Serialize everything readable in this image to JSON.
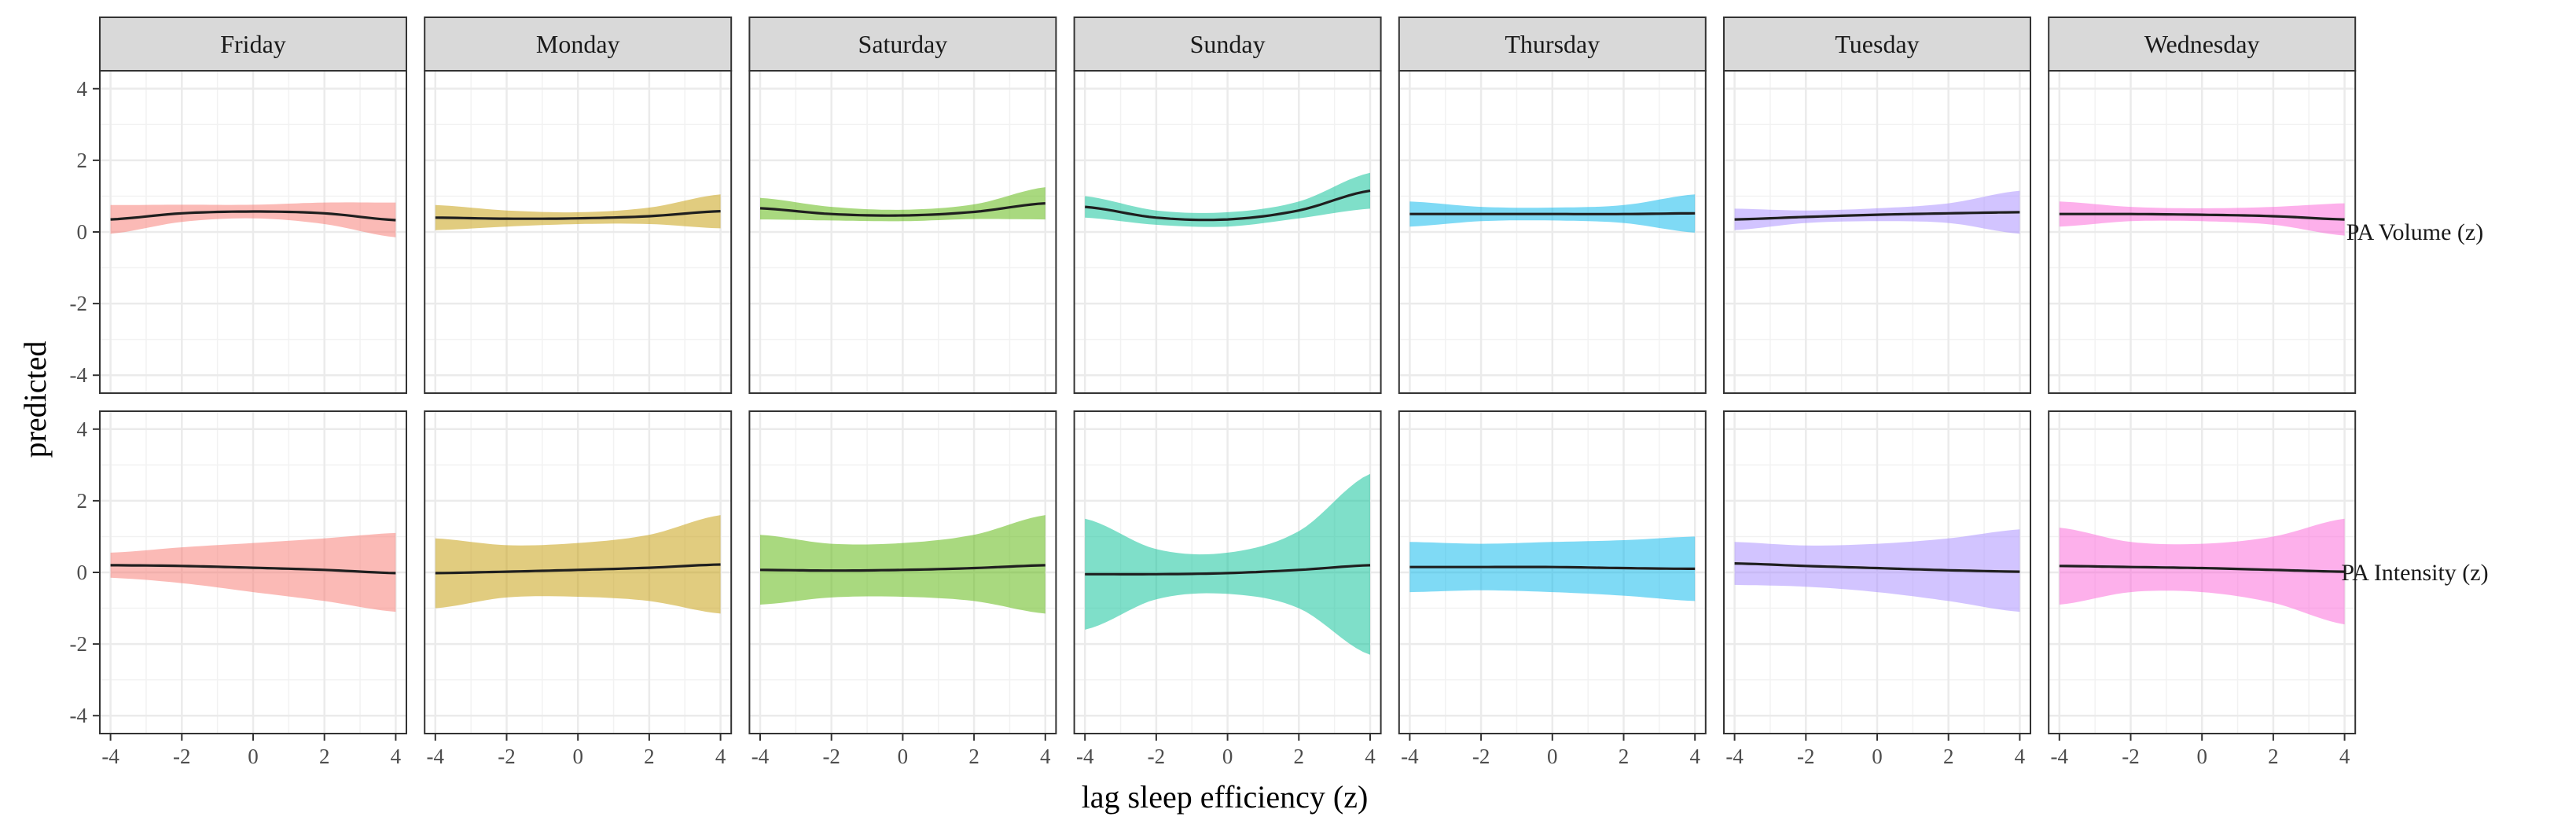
{
  "chart_data": {
    "type": "line",
    "title": "",
    "xlabel": "lag sleep efficiency (z)",
    "ylabel": "predicted",
    "xlim": [
      -4.3,
      4.3
    ],
    "ylim": [
      -4.5,
      4.5
    ],
    "x_ticks": [
      "-4",
      "-2",
      "0",
      "2",
      "4"
    ],
    "y_ticks": [
      "4",
      "2",
      "0",
      "-2",
      "-4"
    ],
    "grid": true,
    "legend": "none",
    "facet_columns": [
      {
        "label": "Friday",
        "color": "#F8766D"
      },
      {
        "label": "Monday",
        "color": "#C49A00"
      },
      {
        "label": "Saturday",
        "color": "#53B400"
      },
      {
        "label": "Sunday",
        "color": "#00C094"
      },
      {
        "label": "Thursday",
        "color": "#00B6EB"
      },
      {
        "label": "Tuesday",
        "color": "#A58AFF"
      },
      {
        "label": "Wednesday",
        "color": "#FB61D7"
      }
    ],
    "facet_rows": [
      {
        "label": "PA Volume (z)",
        "x": [
          -4,
          -2,
          0,
          2,
          4
        ],
        "panels": [
          {
            "fit": [
              0.35,
              0.52,
              0.57,
              0.52,
              0.33
            ],
            "lower": [
              -0.05,
              0.28,
              0.38,
              0.22,
              -0.15
            ],
            "upper": [
              0.75,
              0.76,
              0.76,
              0.82,
              0.82
            ]
          },
          {
            "fit": [
              0.4,
              0.37,
              0.38,
              0.44,
              0.58
            ],
            "lower": [
              0.05,
              0.15,
              0.22,
              0.22,
              0.1
            ],
            "upper": [
              0.75,
              0.6,
              0.55,
              0.68,
              1.05
            ]
          },
          {
            "fit": [
              0.66,
              0.5,
              0.46,
              0.56,
              0.8
            ],
            "lower": [
              0.35,
              0.32,
              0.3,
              0.36,
              0.35
            ],
            "upper": [
              0.95,
              0.7,
              0.62,
              0.77,
              1.25
            ]
          },
          {
            "fit": [
              0.7,
              0.4,
              0.35,
              0.6,
              1.15
            ],
            "lower": [
              0.4,
              0.2,
              0.15,
              0.38,
              0.65
            ],
            "upper": [
              1.0,
              0.6,
              0.55,
              0.85,
              1.65
            ]
          },
          {
            "fit": [
              0.5,
              0.5,
              0.5,
              0.5,
              0.52
            ],
            "lower": [
              0.15,
              0.3,
              0.32,
              0.25,
              -0.02
            ],
            "upper": [
              0.85,
              0.7,
              0.68,
              0.75,
              1.05
            ]
          },
          {
            "fit": [
              0.35,
              0.42,
              0.48,
              0.52,
              0.55
            ],
            "lower": [
              0.05,
              0.25,
              0.3,
              0.25,
              -0.05
            ],
            "upper": [
              0.65,
              0.6,
              0.66,
              0.8,
              1.15
            ]
          },
          {
            "fit": [
              0.5,
              0.5,
              0.48,
              0.44,
              0.35
            ],
            "lower": [
              0.15,
              0.3,
              0.3,
              0.2,
              -0.1
            ],
            "upper": [
              0.85,
              0.7,
              0.66,
              0.7,
              0.8
            ]
          }
        ]
      },
      {
        "label": "PA Intensity (z)",
        "x": [
          -4,
          -2,
          0,
          2,
          4
        ],
        "panels": [
          {
            "fit": [
              0.2,
              0.18,
              0.13,
              0.07,
              -0.02
            ],
            "lower": [
              -0.15,
              -0.3,
              -0.55,
              -0.8,
              -1.1
            ],
            "upper": [
              0.55,
              0.7,
              0.82,
              0.95,
              1.1
            ]
          },
          {
            "fit": [
              -0.02,
              0.02,
              0.07,
              0.13,
              0.22
            ],
            "lower": [
              -1.0,
              -0.7,
              -0.68,
              -0.8,
              -1.15
            ],
            "upper": [
              0.95,
              0.76,
              0.82,
              1.05,
              1.6
            ]
          },
          {
            "fit": [
              0.07,
              0.05,
              0.07,
              0.12,
              0.2
            ],
            "lower": [
              -0.9,
              -0.7,
              -0.68,
              -0.8,
              -1.15
            ],
            "upper": [
              1.05,
              0.8,
              0.82,
              1.05,
              1.6
            ]
          },
          {
            "fit": [
              -0.05,
              -0.05,
              -0.02,
              0.07,
              0.2
            ],
            "lower": [
              -1.6,
              -0.75,
              -0.6,
              -1.0,
              -2.3
            ],
            "upper": [
              1.5,
              0.65,
              0.55,
              1.15,
              2.75
            ]
          },
          {
            "fit": [
              0.15,
              0.15,
              0.15,
              0.12,
              0.1
            ],
            "lower": [
              -0.55,
              -0.5,
              -0.55,
              -0.65,
              -0.8
            ],
            "upper": [
              0.85,
              0.8,
              0.85,
              0.9,
              1.0
            ]
          },
          {
            "fit": [
              0.25,
              0.18,
              0.12,
              0.06,
              0.02
            ],
            "lower": [
              -0.35,
              -0.4,
              -0.55,
              -0.8,
              -1.1
            ],
            "upper": [
              0.85,
              0.75,
              0.8,
              0.95,
              1.2
            ]
          },
          {
            "fit": [
              0.18,
              0.15,
              0.12,
              0.07,
              0.02
            ],
            "lower": [
              -0.9,
              -0.55,
              -0.55,
              -0.85,
              -1.45
            ],
            "upper": [
              1.25,
              0.85,
              0.8,
              1.0,
              1.5
            ]
          }
        ]
      }
    ]
  }
}
